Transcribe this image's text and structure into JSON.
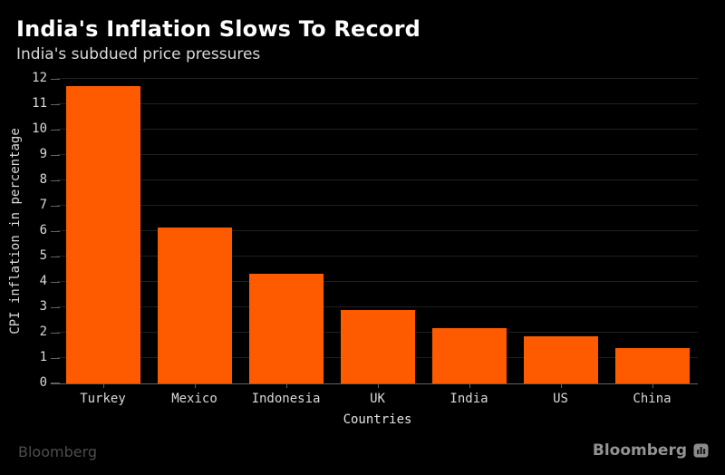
{
  "header": {
    "title": "India's Inflation Slows To Record",
    "subtitle": "India's subdued price pressures"
  },
  "chart_data": {
    "type": "bar",
    "categories": [
      "Turkey",
      "Mexico",
      "Indonesia",
      "UK",
      "India",
      "US",
      "China"
    ],
    "values": [
      11.72,
      6.16,
      4.33,
      2.9,
      2.18,
      1.87,
      1.4
    ],
    "title": "India's Inflation Slows To Record",
    "subtitle": "India's subdued price pressures",
    "xlabel": "Countries",
    "ylabel": "CPI inflation in percentage",
    "ylim": [
      0,
      12
    ],
    "yticks": [
      0,
      1,
      2,
      3,
      4,
      5,
      6,
      7,
      8,
      9,
      10,
      11,
      12
    ],
    "grid": true,
    "legend": "none",
    "bar_color": "#fe5b00"
  },
  "colors": {
    "background": "#000000",
    "accent_orange": "#fe5b00",
    "gridline": "#1f1f1f",
    "axis": "#636363",
    "text_primary": "#ffffff",
    "text_secondary": "#d9d9d9",
    "brand_left": "#4d4d4d",
    "brand_right": "#949494"
  },
  "footer": {
    "brand_left": "Bloomberg",
    "brand_right": "Bloomberg",
    "terminal_icon": "bloomberg-terminal-icon"
  }
}
